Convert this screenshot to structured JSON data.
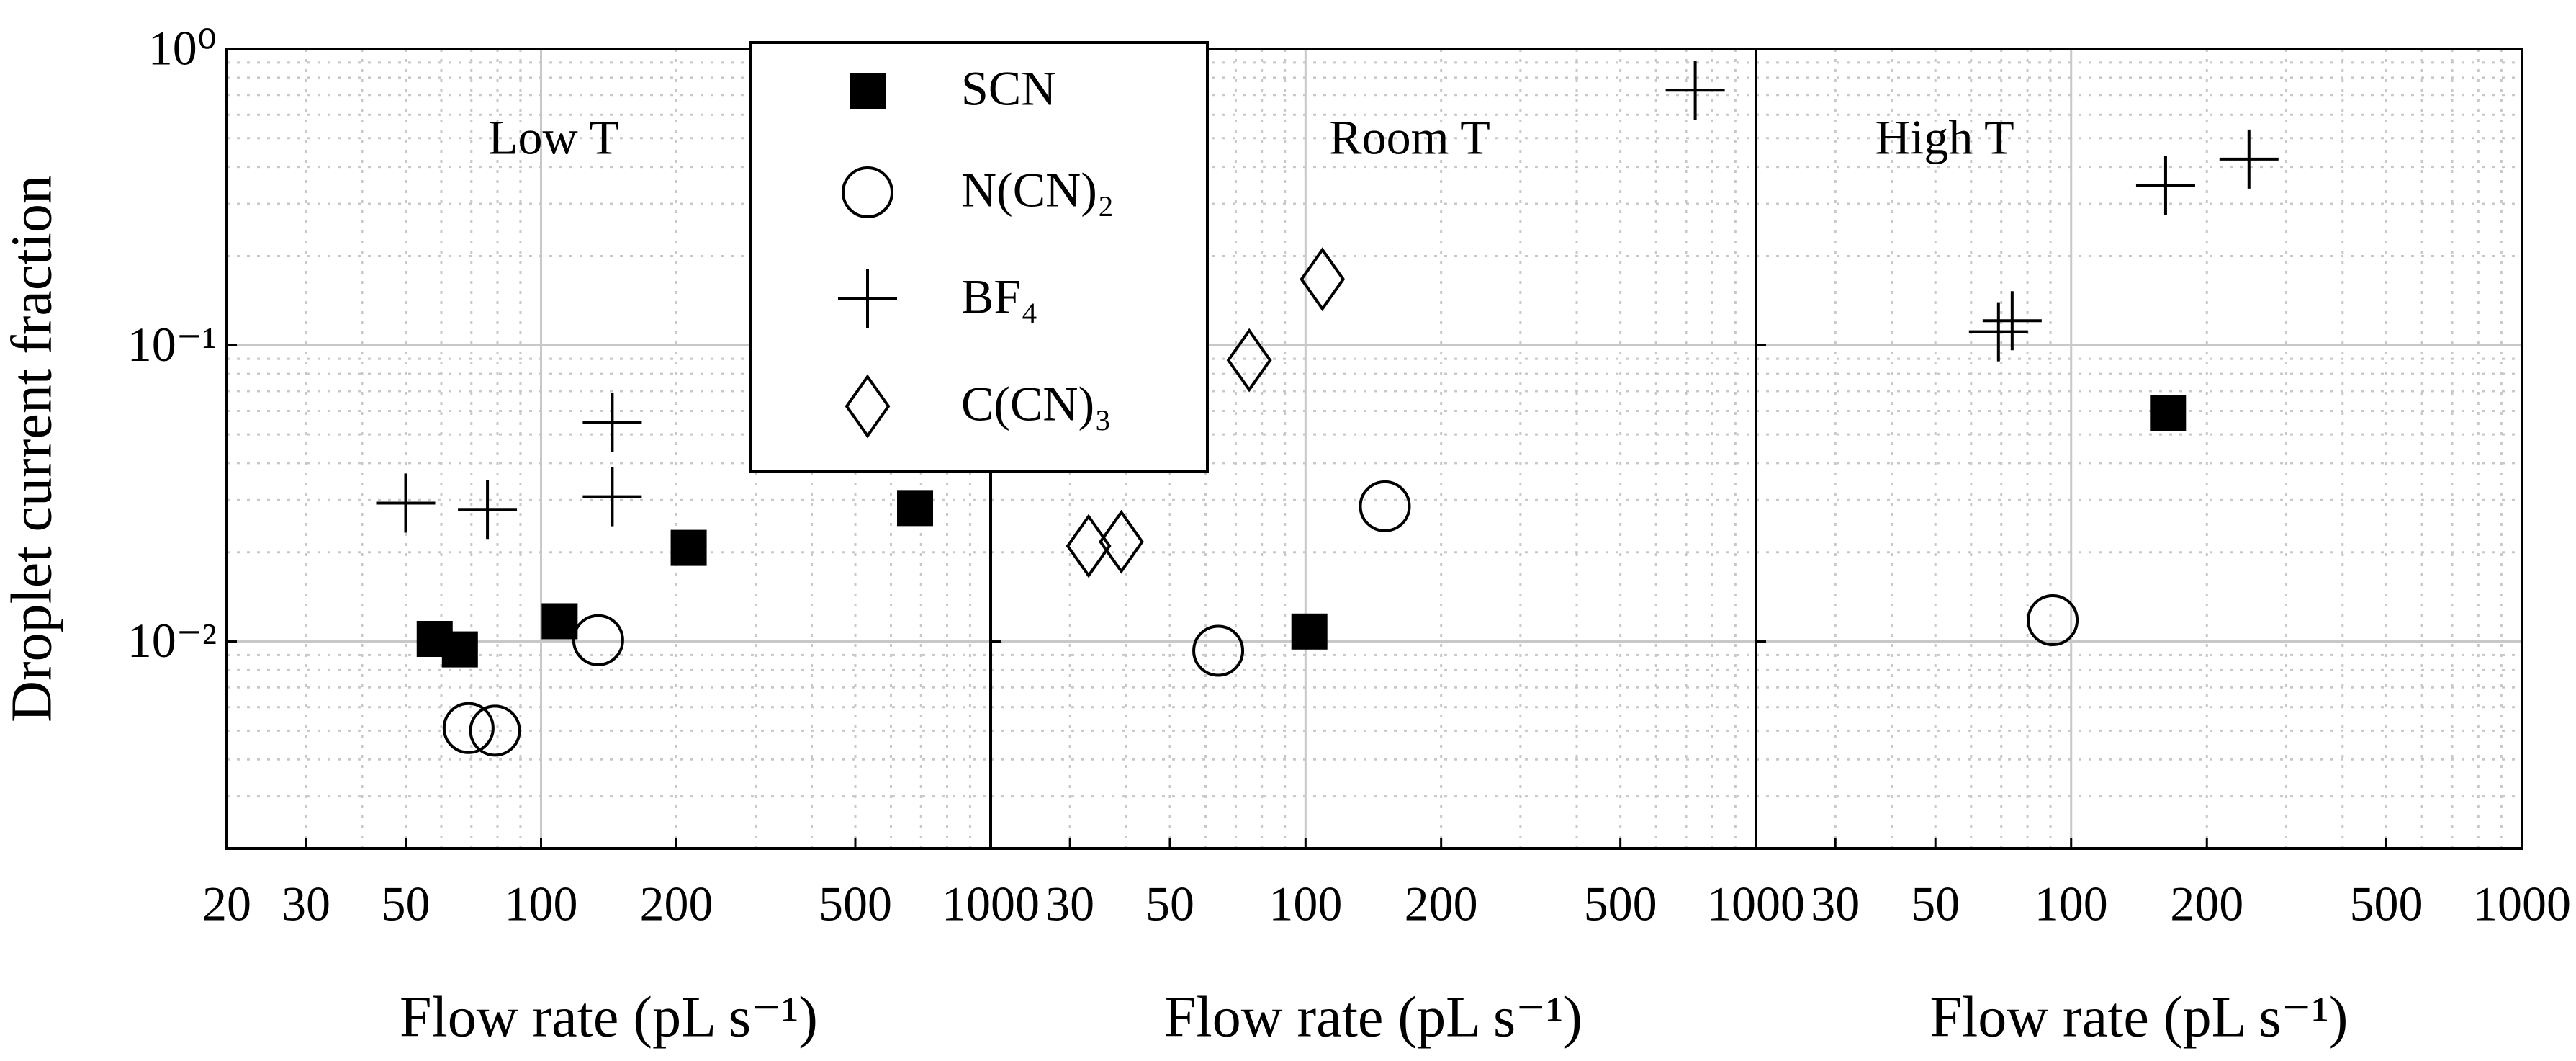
{
  "chart_data": [
    {
      "type": "scatter",
      "title": "Low T",
      "xlabel": "Flow rate (pL s⁻¹)",
      "ylabel": "Droplet current fraction",
      "xscale": "log",
      "yscale": "log",
      "xlim": [
        20,
        1000
      ],
      "ylim": [
        0.002,
        1
      ],
      "xticks": [
        20,
        30,
        50,
        100,
        200,
        500,
        1000
      ],
      "yticks": [
        {
          "value": 0.01,
          "label": "10⁻²"
        },
        {
          "value": 0.1,
          "label": "10⁻¹"
        },
        {
          "value": 1,
          "label": "10⁰"
        }
      ],
      "grid": true,
      "series": [
        {
          "name": "SCN",
          "marker": "square",
          "color": "#000000",
          "x": [
            58,
            66,
            110,
            213,
            679
          ],
          "values": [
            0.0102,
            0.0094,
            0.0117,
            0.0207,
            0.0282
          ]
        },
        {
          "name": "N(CN)₂",
          "marker": "circle",
          "color": "#000000",
          "x": [
            69,
            79,
            134
          ],
          "values": [
            0.0051,
            0.005,
            0.0101
          ]
        },
        {
          "name": "BF₄",
          "marker": "plus",
          "color": "#000000",
          "x": [
            50,
            76,
            144,
            144
          ],
          "values": [
            0.0293,
            0.0279,
            0.0548,
            0.0308
          ]
        },
        {
          "name": "C(CN)₃",
          "marker": "diamond",
          "color": "#000000",
          "x": [],
          "values": []
        }
      ]
    },
    {
      "type": "scatter",
      "title": "Room T",
      "xlabel": "Flow rate (pL s⁻¹)",
      "xscale": "log",
      "yscale": "log",
      "xlim": [
        20,
        1000
      ],
      "ylim": [
        0.002,
        1
      ],
      "xticks": [
        30,
        50,
        100,
        200,
        500,
        1000
      ],
      "yticks": [
        0.01,
        0.1,
        1
      ],
      "grid": true,
      "series": [
        {
          "marker": "square",
          "color": "#000000",
          "x": [
            102
          ],
          "values": [
            0.0108
          ]
        },
        {
          "marker": "circle",
          "color": "#000000",
          "x": [
            64,
            150
          ],
          "values": [
            0.0093,
            0.0286
          ]
        },
        {
          "marker": "plus",
          "color": "#000000",
          "x": [
            733
          ],
          "values": [
            0.726
          ]
        },
        {
          "marker": "diamond",
          "color": "#000000",
          "x": [
            33,
            39,
            75,
            109
          ],
          "values": [
            0.021,
            0.0217,
            0.089,
            0.167
          ]
        }
      ]
    },
    {
      "type": "scatter",
      "title": "High T",
      "xlabel": "Flow rate (pL s⁻¹)",
      "xscale": "log",
      "yscale": "log",
      "xlim": [
        20,
        1000
      ],
      "ylim": [
        0.002,
        1
      ],
      "xticks": [
        30,
        50,
        100,
        200,
        500,
        1000
      ],
      "yticks": [
        0.01,
        0.1,
        1
      ],
      "grid": true,
      "series": [
        {
          "marker": "square",
          "color": "#000000",
          "x": [
            164
          ],
          "values": [
            0.059
          ]
        },
        {
          "marker": "circle",
          "color": "#000000",
          "x": [
            91
          ],
          "values": [
            0.0118
          ]
        },
        {
          "marker": "plus",
          "color": "#000000",
          "x": [
            69,
            74,
            162,
            248
          ],
          "values": [
            0.111,
            0.121,
            0.346,
            0.425
          ]
        }
      ]
    }
  ]
}
